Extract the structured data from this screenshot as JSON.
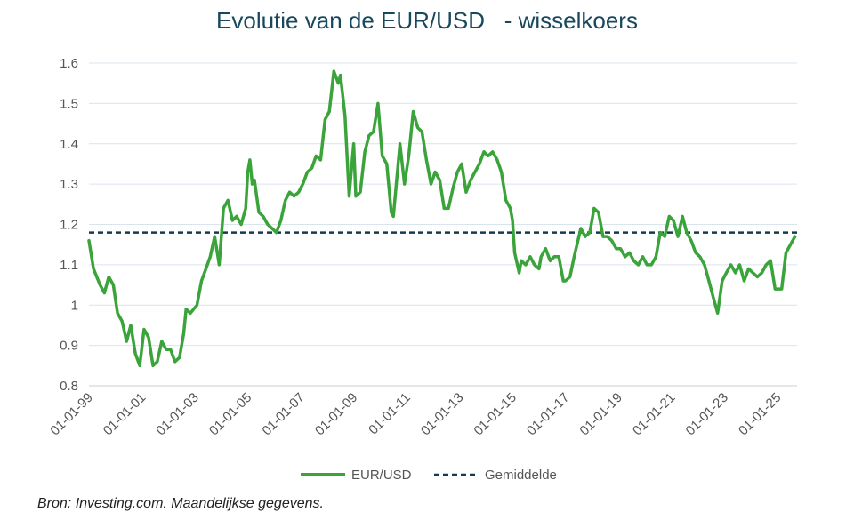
{
  "source": "Bron: Investing.com. Maandelijkse gegevens.",
  "chart_data": {
    "type": "line",
    "title": "Evolutie van de EUR/USD   - wisselkoers",
    "xlabel": "",
    "ylabel": "",
    "ylim": [
      0.8,
      1.6
    ],
    "yticks": [
      0.8,
      0.9,
      1,
      1.1,
      1.2,
      1.3,
      1.4,
      1.5,
      1.6
    ],
    "ytick_labels": [
      "0.8",
      "0.9",
      "1",
      "1.1",
      "1.2",
      "1.3",
      "1.4",
      "1.5",
      "1.6"
    ],
    "xlim": [
      1999.0,
      2025.75
    ],
    "xtick_labels": [
      "01-01-99",
      "01-01-01",
      "01-01-03",
      "01-01-05",
      "01-01-07",
      "01-01-09",
      "01-01-11",
      "01-01-13",
      "01-01-15",
      "01-01-17",
      "01-01-19",
      "01-01-21",
      "01-01-23",
      "01-01-25"
    ],
    "grid": true,
    "legend_position": "bottom",
    "colors": {
      "eurusd": "#3aa33a",
      "average": "#143a52",
      "grid": "#d9e4ec"
    },
    "series": [
      {
        "name": "EUR/USD",
        "style": "solid",
        "points": [
          [
            1999.0,
            1.16
          ],
          [
            1999.17,
            1.09
          ],
          [
            1999.42,
            1.05
          ],
          [
            1999.58,
            1.03
          ],
          [
            1999.75,
            1.07
          ],
          [
            1999.92,
            1.05
          ],
          [
            2000.08,
            0.98
          ],
          [
            2000.25,
            0.96
          ],
          [
            2000.42,
            0.91
          ],
          [
            2000.58,
            0.95
          ],
          [
            2000.75,
            0.88
          ],
          [
            2000.92,
            0.85
          ],
          [
            2001.08,
            0.94
          ],
          [
            2001.25,
            0.92
          ],
          [
            2001.42,
            0.85
          ],
          [
            2001.58,
            0.86
          ],
          [
            2001.75,
            0.91
          ],
          [
            2001.92,
            0.89
          ],
          [
            2002.08,
            0.89
          ],
          [
            2002.25,
            0.86
          ],
          [
            2002.42,
            0.87
          ],
          [
            2002.58,
            0.93
          ],
          [
            2002.67,
            0.99
          ],
          [
            2002.83,
            0.98
          ],
          [
            2003.08,
            1.0
          ],
          [
            2003.25,
            1.06
          ],
          [
            2003.42,
            1.09
          ],
          [
            2003.58,
            1.12
          ],
          [
            2003.75,
            1.17
          ],
          [
            2003.92,
            1.1
          ],
          [
            2004.08,
            1.24
          ],
          [
            2004.25,
            1.26
          ],
          [
            2004.42,
            1.21
          ],
          [
            2004.58,
            1.22
          ],
          [
            2004.75,
            1.2
          ],
          [
            2004.92,
            1.24
          ],
          [
            2005.0,
            1.33
          ],
          [
            2005.08,
            1.36
          ],
          [
            2005.17,
            1.3
          ],
          [
            2005.25,
            1.31
          ],
          [
            2005.42,
            1.23
          ],
          [
            2005.58,
            1.22
          ],
          [
            2005.75,
            1.2
          ],
          [
            2005.92,
            1.19
          ],
          [
            2006.08,
            1.18
          ],
          [
            2006.25,
            1.21
          ],
          [
            2006.42,
            1.26
          ],
          [
            2006.58,
            1.28
          ],
          [
            2006.75,
            1.27
          ],
          [
            2006.92,
            1.28
          ],
          [
            2007.08,
            1.3
          ],
          [
            2007.25,
            1.33
          ],
          [
            2007.42,
            1.34
          ],
          [
            2007.58,
            1.37
          ],
          [
            2007.75,
            1.36
          ],
          [
            2007.92,
            1.46
          ],
          [
            2008.08,
            1.48
          ],
          [
            2008.25,
            1.58
          ],
          [
            2008.42,
            1.55
          ],
          [
            2008.5,
            1.57
          ],
          [
            2008.67,
            1.47
          ],
          [
            2008.83,
            1.27
          ],
          [
            2009.0,
            1.4
          ],
          [
            2009.08,
            1.27
          ],
          [
            2009.25,
            1.28
          ],
          [
            2009.42,
            1.38
          ],
          [
            2009.58,
            1.42
          ],
          [
            2009.75,
            1.43
          ],
          [
            2009.92,
            1.5
          ],
          [
            2010.08,
            1.37
          ],
          [
            2010.25,
            1.35
          ],
          [
            2010.42,
            1.23
          ],
          [
            2010.5,
            1.22
          ],
          [
            2010.75,
            1.4
          ],
          [
            2010.92,
            1.3
          ],
          [
            2011.08,
            1.37
          ],
          [
            2011.25,
            1.48
          ],
          [
            2011.42,
            1.44
          ],
          [
            2011.58,
            1.43
          ],
          [
            2011.75,
            1.36
          ],
          [
            2011.92,
            1.3
          ],
          [
            2012.08,
            1.33
          ],
          [
            2012.25,
            1.31
          ],
          [
            2012.42,
            1.24
          ],
          [
            2012.58,
            1.24
          ],
          [
            2012.75,
            1.29
          ],
          [
            2012.92,
            1.33
          ],
          [
            2013.08,
            1.35
          ],
          [
            2013.25,
            1.28
          ],
          [
            2013.42,
            1.31
          ],
          [
            2013.58,
            1.33
          ],
          [
            2013.75,
            1.35
          ],
          [
            2013.92,
            1.38
          ],
          [
            2014.08,
            1.37
          ],
          [
            2014.25,
            1.38
          ],
          [
            2014.42,
            1.36
          ],
          [
            2014.58,
            1.33
          ],
          [
            2014.75,
            1.26
          ],
          [
            2014.92,
            1.24
          ],
          [
            2015.0,
            1.21
          ],
          [
            2015.08,
            1.13
          ],
          [
            2015.25,
            1.08
          ],
          [
            2015.33,
            1.11
          ],
          [
            2015.5,
            1.1
          ],
          [
            2015.67,
            1.12
          ],
          [
            2015.83,
            1.1
          ],
          [
            2016.0,
            1.09
          ],
          [
            2016.08,
            1.12
          ],
          [
            2016.25,
            1.14
          ],
          [
            2016.42,
            1.11
          ],
          [
            2016.58,
            1.12
          ],
          [
            2016.75,
            1.12
          ],
          [
            2016.92,
            1.06
          ],
          [
            2017.0,
            1.06
          ],
          [
            2017.17,
            1.07
          ],
          [
            2017.33,
            1.12
          ],
          [
            2017.58,
            1.19
          ],
          [
            2017.75,
            1.17
          ],
          [
            2017.92,
            1.18
          ],
          [
            2018.08,
            1.24
          ],
          [
            2018.25,
            1.23
          ],
          [
            2018.42,
            1.17
          ],
          [
            2018.58,
            1.17
          ],
          [
            2018.75,
            1.16
          ],
          [
            2018.92,
            1.14
          ],
          [
            2019.08,
            1.14
          ],
          [
            2019.25,
            1.12
          ],
          [
            2019.42,
            1.13
          ],
          [
            2019.58,
            1.11
          ],
          [
            2019.75,
            1.1
          ],
          [
            2019.92,
            1.12
          ],
          [
            2020.08,
            1.1
          ],
          [
            2020.25,
            1.1
          ],
          [
            2020.42,
            1.12
          ],
          [
            2020.58,
            1.18
          ],
          [
            2020.75,
            1.17
          ],
          [
            2020.92,
            1.22
          ],
          [
            2021.08,
            1.21
          ],
          [
            2021.25,
            1.17
          ],
          [
            2021.42,
            1.22
          ],
          [
            2021.58,
            1.18
          ],
          [
            2021.75,
            1.16
          ],
          [
            2021.92,
            1.13
          ],
          [
            2022.08,
            1.12
          ],
          [
            2022.25,
            1.1
          ],
          [
            2022.42,
            1.06
          ],
          [
            2022.58,
            1.02
          ],
          [
            2022.75,
            0.98
          ],
          [
            2022.92,
            1.06
          ],
          [
            2023.08,
            1.08
          ],
          [
            2023.25,
            1.1
          ],
          [
            2023.42,
            1.08
          ],
          [
            2023.58,
            1.1
          ],
          [
            2023.75,
            1.06
          ],
          [
            2023.92,
            1.09
          ],
          [
            2024.08,
            1.08
          ],
          [
            2024.25,
            1.07
          ],
          [
            2024.42,
            1.08
          ],
          [
            2024.58,
            1.1
          ],
          [
            2024.75,
            1.11
          ],
          [
            2024.92,
            1.04
          ],
          [
            2025.17,
            1.04
          ],
          [
            2025.33,
            1.13
          ],
          [
            2025.5,
            1.15
          ],
          [
            2025.67,
            1.17
          ]
        ]
      },
      {
        "name": "Gemiddelde",
        "style": "dashed",
        "value": 1.18
      }
    ]
  }
}
